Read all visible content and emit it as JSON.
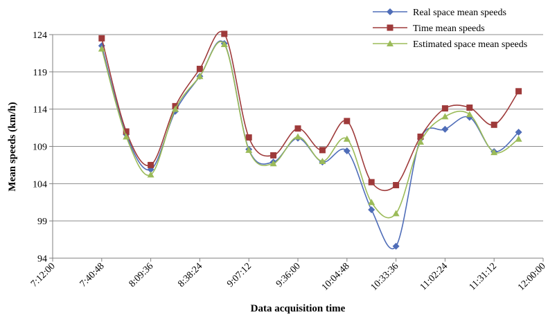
{
  "chart_data": {
    "type": "line",
    "title": "",
    "xlabel": "Data acquisition time",
    "ylabel": "Mean speeds (km/h)",
    "ylim": [
      94,
      124
    ],
    "yticks": [
      94,
      99,
      104,
      109,
      114,
      119,
      124
    ],
    "xticks": [
      "7:12:00",
      "7:40:48",
      "8:09:36",
      "8:38:24",
      "9:07:12",
      "9:36:00",
      "10:04:48",
      "10:33:36",
      "11:02:24",
      "11:31:12",
      "12:00:00"
    ],
    "x": [
      "7:40:48",
      "7:55:12",
      "8:09:36",
      "8:24:00",
      "8:38:24",
      "8:52:48",
      "9:07:12",
      "9:21:36",
      "9:36:00",
      "9:50:24",
      "10:04:48",
      "10:19:12",
      "10:33:36",
      "10:48:00",
      "11:02:24",
      "11:16:48",
      "11:31:12",
      "11:45:36"
    ],
    "grid": true,
    "legend_position": "top-right",
    "series": [
      {
        "name": "Real space mean speeds",
        "color": "#4f6db8",
        "marker": "diamond",
        "values": [
          122.5,
          110.6,
          105.9,
          113.7,
          118.4,
          122.8,
          108.6,
          106.9,
          110.1,
          106.9,
          108.4,
          100.5,
          95.6,
          110.0,
          111.3,
          112.9,
          108.3,
          110.9
        ]
      },
      {
        "name": "Time mean speeds",
        "color": "#9e3a3a",
        "marker": "square",
        "values": [
          123.5,
          111.0,
          106.5,
          114.4,
          119.4,
          124.1,
          110.2,
          107.8,
          111.4,
          108.5,
          112.4,
          104.2,
          103.8,
          110.3,
          114.1,
          114.2,
          111.9,
          116.4
        ]
      },
      {
        "name": "Estimated space mean speeds",
        "color": "#9bbb59",
        "marker": "triangle",
        "values": [
          122.1,
          110.3,
          105.2,
          114.0,
          118.4,
          122.7,
          108.5,
          106.7,
          110.3,
          107.0,
          110.0,
          101.5,
          100.0,
          109.6,
          113.0,
          113.3,
          108.2,
          110.0
        ]
      }
    ]
  }
}
